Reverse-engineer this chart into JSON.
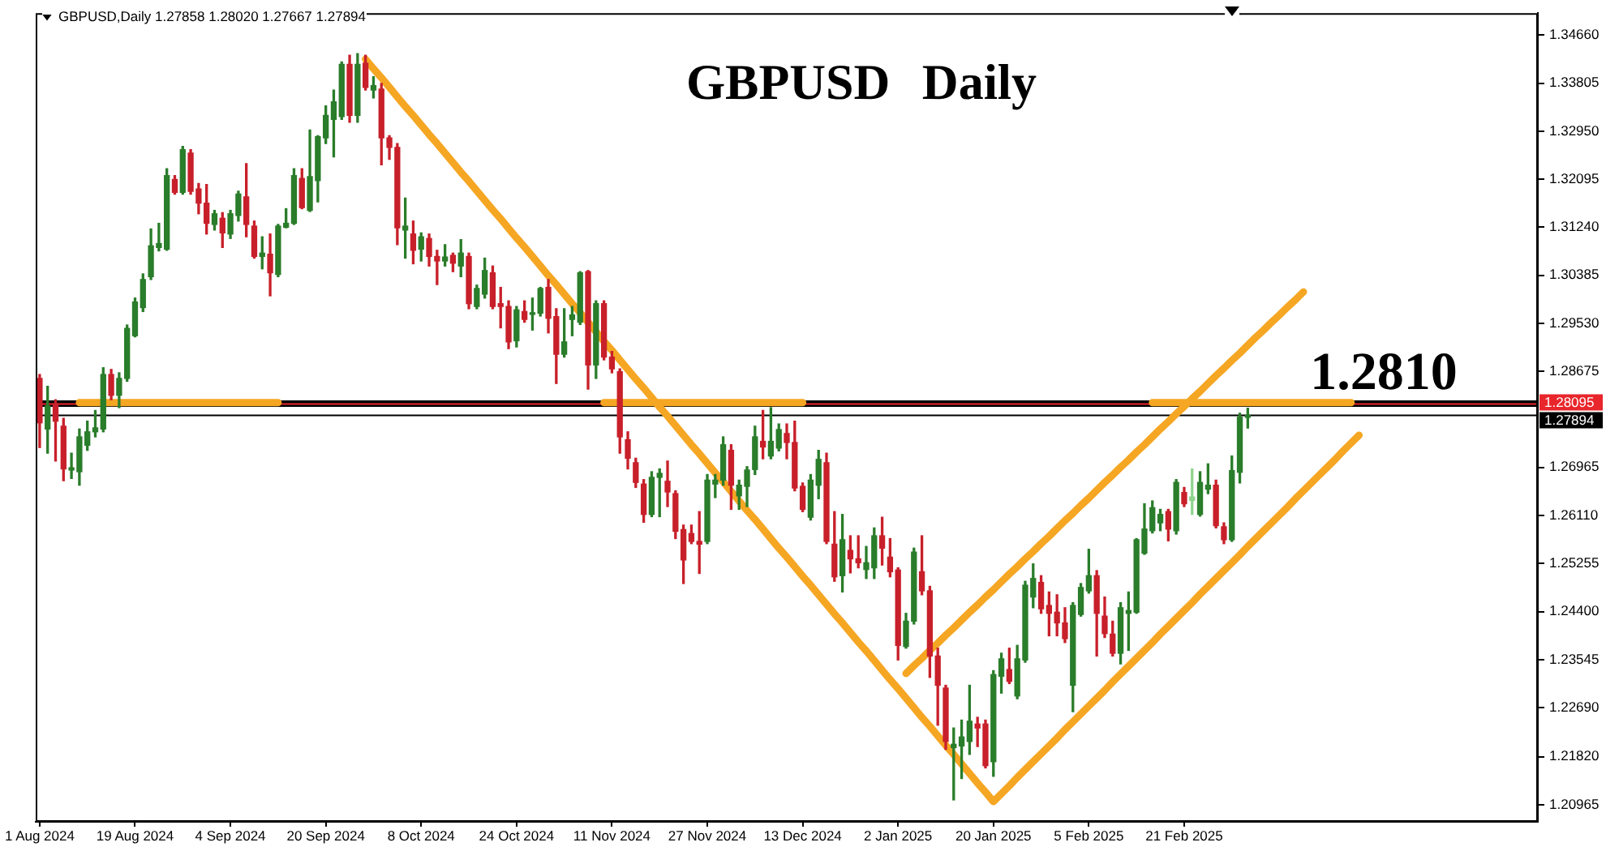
{
  "chart_data": {
    "type": "candlestick",
    "title": "GBPUSD Daily",
    "subtitle": "GBPUSD,Daily 1.27858 1.28020 1.27667 1.27894",
    "categories": [
      "1 Aug 2024",
      null,
      null,
      null,
      null,
      null,
      null,
      null,
      null,
      null,
      null,
      null,
      "19 Aug 2024",
      null,
      null,
      null,
      null,
      null,
      null,
      null,
      null,
      null,
      null,
      null,
      "4 Sep 2024",
      null,
      null,
      null,
      null,
      null,
      null,
      null,
      null,
      null,
      null,
      null,
      "20 Sep 2024",
      null,
      null,
      null,
      null,
      null,
      null,
      null,
      null,
      null,
      null,
      null,
      "8 Oct 2024",
      null,
      null,
      null,
      null,
      null,
      null,
      null,
      null,
      null,
      null,
      null,
      "24 Oct 2024",
      null,
      null,
      null,
      null,
      null,
      null,
      null,
      null,
      null,
      null,
      null,
      "11 Nov 2024",
      null,
      null,
      null,
      null,
      null,
      null,
      null,
      null,
      null,
      null,
      null,
      "27 Nov 2024",
      null,
      null,
      null,
      null,
      null,
      null,
      null,
      null,
      null,
      null,
      null,
      "13 Dec 2024",
      null,
      null,
      null,
      null,
      null,
      null,
      null,
      null,
      null,
      null,
      null,
      "2 Jan 2025",
      null,
      null,
      null,
      null,
      null,
      null,
      null,
      null,
      null,
      null,
      null,
      "20 Jan 2025",
      null,
      null,
      null,
      null,
      null,
      null,
      null,
      null,
      null,
      null,
      null,
      "5 Feb 2025",
      null,
      null,
      null,
      null,
      null,
      null,
      null,
      null,
      null,
      null,
      null,
      "21 Feb 2025",
      null,
      null,
      null,
      null,
      null,
      null,
      null,
      null,
      null,
      null,
      null,
      null,
      null,
      null,
      null,
      null,
      null,
      null,
      null,
      null,
      null,
      null,
      null,
      null,
      null,
      null,
      null,
      null,
      null,
      null,
      null,
      null,
      null,
      null,
      null,
      null,
      null,
      null,
      null,
      null,
      null,
      null,
      null,
      null
    ],
    "ohlc": [
      [
        1.2855,
        1.2862,
        1.2732,
        1.2776
      ],
      [
        1.2765,
        1.2841,
        1.2722,
        1.2806
      ],
      [
        1.281,
        1.2817,
        1.2708,
        1.2779
      ],
      [
        1.277,
        1.2784,
        1.2673,
        1.2694
      ],
      [
        1.2692,
        1.2722,
        1.2677,
        1.2696
      ],
      [
        1.2689,
        1.2765,
        1.2665,
        1.2751
      ],
      [
        1.2736,
        1.2779,
        1.2727,
        1.276
      ],
      [
        1.276,
        1.2798,
        1.2751,
        1.2767
      ],
      [
        1.2765,
        1.2874,
        1.276,
        1.2862
      ],
      [
        1.2862,
        1.2871,
        1.2817,
        1.2825
      ],
      [
        1.2825,
        1.2865,
        1.2803,
        1.2855
      ],
      [
        1.2855,
        1.295,
        1.285,
        1.2944
      ],
      [
        1.2931,
        1.2998,
        1.2929,
        1.2991
      ],
      [
        1.2981,
        1.3041,
        1.2974,
        1.3031
      ],
      [
        1.3036,
        1.3121,
        1.3031,
        1.3091
      ],
      [
        1.3088,
        1.3131,
        1.3082,
        1.3095
      ],
      [
        1.3085,
        1.3228,
        1.3083,
        1.3216
      ],
      [
        1.3209,
        1.3216,
        1.3183,
        1.3186
      ],
      [
        1.3186,
        1.3268,
        1.3183,
        1.3262
      ],
      [
        1.3256,
        1.3262,
        1.3183,
        1.3188
      ],
      [
        1.3192,
        1.3202,
        1.3148,
        1.3167
      ],
      [
        1.3167,
        1.32,
        1.3112,
        1.3131
      ],
      [
        1.3129,
        1.3154,
        1.3119,
        1.3148
      ],
      [
        1.314,
        1.315,
        1.3088,
        1.3114
      ],
      [
        1.3112,
        1.3154,
        1.3104,
        1.3148
      ],
      [
        1.3145,
        1.3188,
        1.3135,
        1.3183
      ],
      [
        1.3178,
        1.3237,
        1.3107,
        1.3129
      ],
      [
        1.3126,
        1.3135,
        1.3069,
        1.3072
      ],
      [
        1.3072,
        1.3107,
        1.305,
        1.3078
      ],
      [
        1.3076,
        1.3112,
        1.3002,
        1.3043
      ],
      [
        1.304,
        1.3129,
        1.3036,
        1.3126
      ],
      [
        1.3124,
        1.3157,
        1.3123,
        1.3131
      ],
      [
        1.3131,
        1.3228,
        1.3129,
        1.3216
      ],
      [
        1.3211,
        1.3228,
        1.3157,
        1.3159
      ],
      [
        1.3154,
        1.3297,
        1.3152,
        1.3214
      ],
      [
        1.3207,
        1.3287,
        1.3169,
        1.3285
      ],
      [
        1.3283,
        1.334,
        1.3273,
        1.3323
      ],
      [
        1.3316,
        1.3368,
        1.3249,
        1.3347
      ],
      [
        1.3321,
        1.3418,
        1.3316,
        1.3414
      ],
      [
        1.3414,
        1.343,
        1.3311,
        1.3323
      ],
      [
        1.3323,
        1.3433,
        1.3311,
        1.3414
      ],
      [
        1.3416,
        1.343,
        1.3368,
        1.3373
      ],
      [
        1.3368,
        1.3392,
        1.3354,
        1.3376
      ],
      [
        1.337,
        1.338,
        1.3235,
        1.3283
      ],
      [
        1.3283,
        1.3287,
        1.3245,
        1.3266
      ],
      [
        1.3266,
        1.3273,
        1.3093,
        1.3123
      ],
      [
        1.3119,
        1.3176,
        1.3069,
        1.3126
      ],
      [
        1.3112,
        1.3135,
        1.3059,
        1.3083
      ],
      [
        1.3085,
        1.3114,
        1.3064,
        1.3107
      ],
      [
        1.3104,
        1.3112,
        1.3055,
        1.3072
      ],
      [
        1.3072,
        1.3083,
        1.3022,
        1.3064
      ],
      [
        1.3064,
        1.3093,
        1.3055,
        1.3071
      ],
      [
        1.3074,
        1.3078,
        1.3045,
        1.306
      ],
      [
        1.3055,
        1.3102,
        1.3036,
        1.3078
      ],
      [
        1.3072,
        1.3078,
        1.2979,
        1.2988
      ],
      [
        1.2983,
        1.3021,
        1.2979,
        1.3015
      ],
      [
        1.3005,
        1.3069,
        1.2998,
        1.3047
      ],
      [
        1.3043,
        1.3055,
        1.2979,
        1.2983
      ],
      [
        1.2988,
        1.3017,
        1.2945,
        1.2983
      ],
      [
        1.2983,
        1.2993,
        1.2908,
        1.292
      ],
      [
        1.2922,
        1.2983,
        1.2911,
        1.2977
      ],
      [
        1.2974,
        1.2993,
        1.2955,
        1.296
      ],
      [
        1.2969,
        1.2998,
        1.2941,
        1.2971
      ],
      [
        1.2971,
        1.3017,
        1.2966,
        1.3015
      ],
      [
        1.3017,
        1.3031,
        1.2936,
        1.2962
      ],
      [
        1.2965,
        1.2979,
        1.2846,
        1.2898
      ],
      [
        1.2898,
        1.2979,
        1.2893,
        1.292
      ],
      [
        1.296,
        1.2983,
        1.2931,
        1.2968
      ],
      [
        1.2955,
        1.3045,
        1.2951,
        1.3043
      ],
      [
        1.3045,
        1.3047,
        1.2836,
        1.2879
      ],
      [
        1.2879,
        1.2993,
        1.2855,
        1.2988
      ],
      [
        1.2988,
        1.2993,
        1.2888,
        1.2893
      ],
      [
        1.2893,
        1.2903,
        1.2865,
        1.2872
      ],
      [
        1.2867,
        1.2872,
        1.2722,
        1.2751
      ],
      [
        1.2746,
        1.276,
        1.2694,
        1.2713
      ],
      [
        1.2705,
        1.2713,
        1.2661,
        1.267
      ],
      [
        1.2667,
        1.2675,
        1.2599,
        1.2613
      ],
      [
        1.2613,
        1.2689,
        1.2609,
        1.2679
      ],
      [
        1.2679,
        1.2694,
        1.2609,
        1.2686
      ],
      [
        1.2672,
        1.2708,
        1.2627,
        1.2653
      ],
      [
        1.265,
        1.2655,
        1.257,
        1.2583
      ],
      [
        1.2586,
        1.2594,
        1.249,
        1.2532
      ],
      [
        1.2579,
        1.2594,
        1.2561,
        1.2565
      ],
      [
        1.2565,
        1.2618,
        1.2508,
        1.256
      ],
      [
        1.2565,
        1.2684,
        1.2561,
        1.2674
      ],
      [
        1.2667,
        1.2684,
        1.2643,
        1.2674
      ],
      [
        1.2674,
        1.2751,
        1.2665,
        1.2737
      ],
      [
        1.2727,
        1.2737,
        1.2622,
        1.2665
      ],
      [
        1.2646,
        1.2674,
        1.2622,
        1.2665
      ],
      [
        1.2663,
        1.2698,
        1.2627,
        1.2692
      ],
      [
        1.2693,
        1.277,
        1.2684,
        1.2751
      ],
      [
        1.2743,
        1.2798,
        1.2712,
        1.2733
      ],
      [
        1.2717,
        1.2803,
        1.2712,
        1.2743
      ],
      [
        1.2731,
        1.2774,
        1.2726,
        1.2764
      ],
      [
        1.2757,
        1.2774,
        1.2712,
        1.2741
      ],
      [
        1.2741,
        1.2779,
        1.2655,
        1.266
      ],
      [
        1.2663,
        1.2669,
        1.2618,
        1.2622
      ],
      [
        1.2608,
        1.2684,
        1.2603,
        1.2674
      ],
      [
        1.2665,
        1.2727,
        1.2641,
        1.2711
      ],
      [
        1.2705,
        1.2722,
        1.2561,
        1.2565
      ],
      [
        1.256,
        1.2618,
        1.2494,
        1.2502
      ],
      [
        1.2504,
        1.2613,
        1.2475,
        1.2568
      ],
      [
        1.2549,
        1.2575,
        1.2509,
        1.2534
      ],
      [
        1.2534,
        1.2575,
        1.2518,
        1.2527
      ],
      [
        1.2515,
        1.2556,
        1.2499,
        1.2527
      ],
      [
        1.2518,
        1.2589,
        1.2499,
        1.2575
      ],
      [
        1.2575,
        1.2608,
        1.2523,
        1.2553
      ],
      [
        1.2537,
        1.257,
        1.2502,
        1.2511
      ],
      [
        1.2514,
        1.2518,
        1.2354,
        1.238
      ],
      [
        1.2378,
        1.2437,
        1.2375,
        1.2423
      ],
      [
        1.2423,
        1.2553,
        1.2418,
        1.2546
      ],
      [
        1.2511,
        1.2575,
        1.247,
        1.2477
      ],
      [
        1.2477,
        1.2485,
        1.2323,
        1.2361
      ],
      [
        1.2361,
        1.2375,
        1.2238,
        1.2309
      ],
      [
        1.2304,
        1.2309,
        1.2195,
        1.2209
      ],
      [
        1.2198,
        1.2233,
        1.2105,
        1.2204
      ],
      [
        1.2201,
        1.2247,
        1.2143,
        1.2217
      ],
      [
        1.2209,
        1.2309,
        1.2186,
        1.2245
      ],
      [
        1.224,
        1.2252,
        1.22,
        1.2233
      ],
      [
        1.224,
        1.2247,
        1.2162,
        1.2166
      ],
      [
        1.2173,
        1.2335,
        1.2147,
        1.2328
      ],
      [
        1.2325,
        1.2366,
        1.2295,
        1.2356
      ],
      [
        1.2337,
        1.2375,
        1.2312,
        1.2316
      ],
      [
        1.229,
        1.238,
        1.2285,
        1.2356
      ],
      [
        1.2354,
        1.2494,
        1.235,
        1.2487
      ],
      [
        1.2466,
        1.2525,
        1.2447,
        1.2499
      ],
      [
        1.2492,
        1.2504,
        1.2437,
        1.2445
      ],
      [
        1.2451,
        1.2475,
        1.2397,
        1.2437
      ],
      [
        1.2439,
        1.247,
        1.2397,
        1.242
      ],
      [
        1.242,
        1.2447,
        1.2385,
        1.2392
      ],
      [
        1.2309,
        1.2456,
        1.2262,
        1.2451
      ],
      [
        1.2435,
        1.249,
        1.2432,
        1.2483
      ],
      [
        1.2477,
        1.2551,
        1.2473,
        1.2504
      ],
      [
        1.2504,
        1.2513,
        1.2361,
        1.2437
      ],
      [
        1.2432,
        1.2466,
        1.2394,
        1.2401
      ],
      [
        1.24,
        1.2423,
        1.2361,
        1.2366
      ],
      [
        1.2366,
        1.2456,
        1.2347,
        1.2447
      ],
      [
        1.2437,
        1.2475,
        1.2371,
        1.2442
      ],
      [
        1.2439,
        1.257,
        1.2437,
        1.2568
      ],
      [
        1.2544,
        1.2632,
        1.2542,
        1.2587
      ],
      [
        1.2584,
        1.2637,
        1.258,
        1.2625
      ],
      [
        1.2598,
        1.2622,
        1.2584,
        1.2613
      ],
      [
        1.2618,
        1.2622,
        1.2566,
        1.2587
      ],
      [
        1.2584,
        1.2675,
        1.2578,
        1.267
      ],
      [
        1.2652,
        1.2661,
        1.2627,
        1.2632
      ],
      [
        1.2638,
        1.2694,
        1.2613,
        1.2644
      ],
      [
        1.2613,
        1.2689,
        1.261,
        1.267
      ],
      [
        1.2658,
        1.2703,
        1.265,
        1.2665
      ],
      [
        1.2665,
        1.2674,
        1.2589,
        1.2593
      ],
      [
        1.2591,
        1.2598,
        1.2561,
        1.2568
      ],
      [
        1.2568,
        1.2717,
        1.2565,
        1.2691
      ],
      [
        1.2688,
        1.2793,
        1.2669,
        1.2786
      ],
      [
        1.27858,
        1.2802,
        1.27667,
        1.27894
      ],
      null,
      null,
      null,
      null,
      null,
      null,
      null,
      null,
      null,
      null,
      null,
      null,
      null,
      null,
      null,
      null,
      null,
      null,
      null,
      null,
      null,
      null,
      null,
      null,
      null,
      null,
      null,
      null,
      null,
      null,
      null,
      null,
      null,
      null,
      null,
      null
    ],
    "colors": [
      "#c8202a",
      "#2a7d2a",
      "#c8202a",
      "#c8202a",
      "#2a7d2a",
      "#2a7d2a",
      "#2a7d2a",
      "#2a7d2a",
      "#2a7d2a",
      "#c8202a",
      "#2a7d2a",
      "#2a7d2a",
      "#2a7d2a",
      "#2a7d2a",
      "#2a7d2a",
      "#2a7d2a",
      "#2a7d2a",
      "#c8202a",
      "#2a7d2a",
      "#c8202a",
      "#c8202a",
      "#c8202a",
      "#2a7d2a",
      "#c8202a",
      "#2a7d2a",
      "#2a7d2a",
      "#c8202a",
      "#c8202a",
      "#2a7d2a",
      "#c8202a",
      "#2a7d2a",
      "#2a7d2a",
      "#2a7d2a",
      "#c8202a",
      "#2a7d2a",
      "#2a7d2a",
      "#2a7d2a",
      "#2a7d2a",
      "#2a7d2a",
      "#c8202a",
      "#2a7d2a",
      "#c8202a",
      "#2a7d2a",
      "#c8202a",
      "#c8202a",
      "#c8202a",
      "#2a7d2a",
      "#c8202a",
      "#2a7d2a",
      "#c8202a",
      "#c8202a",
      "#2a7d2a",
      "#c8202a",
      "#2a7d2a",
      "#c8202a",
      "#2a7d2a",
      "#2a7d2a",
      "#c8202a",
      "#c8202a",
      "#c8202a",
      "#2a7d2a",
      "#c8202a",
      "#2a7d2a",
      "#2a7d2a",
      "#c8202a",
      "#c8202a",
      "#2a7d2a",
      "#2a7d2a",
      "#2a7d2a",
      "#c8202a",
      "#2a7d2a",
      "#c8202a",
      "#c8202a",
      "#c8202a",
      "#c8202a",
      "#c8202a",
      "#c8202a",
      "#2a7d2a",
      "#2a7d2a",
      "#c8202a",
      "#c8202a",
      "#c8202a",
      "#c8202a",
      "#c8202a",
      "#2a7d2a",
      "#2a7d2a",
      "#2a7d2a",
      "#c8202a",
      "#2a7d2a",
      "#2a7d2a",
      "#2a7d2a",
      "#c8202a",
      "#2a7d2a",
      "#2a7d2a",
      "#c8202a",
      "#c8202a",
      "#c8202a",
      "#2a7d2a",
      "#2a7d2a",
      "#c8202a",
      "#c8202a",
      "#2a7d2a",
      "#c8202a",
      "#c8202a",
      "#2a7d2a",
      "#2a7d2a",
      "#c8202a",
      "#c8202a",
      "#c8202a",
      "#2a7d2a",
      "#2a7d2a",
      "#c8202a",
      "#c8202a",
      "#c8202a",
      "#c8202a",
      "#2a7d2a",
      "#2a7d2a",
      "#2a7d2a",
      "#c8202a",
      "#c8202a",
      "#2a7d2a",
      "#2a7d2a",
      "#c8202a",
      "#2a7d2a",
      "#2a7d2a",
      "#2a7d2a",
      "#c8202a",
      "#c8202a",
      "#c8202a",
      "#c8202a",
      "#2a7d2a",
      "#2a7d2a",
      "#2a7d2a",
      "#c8202a",
      "#c8202a",
      "#c8202a",
      "#2a7d2a",
      "#2a7d2a",
      "#2a7d2a",
      "#2a7d2a",
      "#2a7d2a",
      "#2a7d2a",
      "#c8202a",
      "#2a7d2a",
      "#c8202a",
      "#8fd48f",
      "#2a7d2a",
      "#2a7d2a",
      "#c8202a",
      "#c8202a",
      "#2a7d2a",
      "#2a7d2a",
      "#2a7d2a",
      null,
      null,
      null,
      null,
      null,
      null,
      null,
      null,
      null,
      null,
      null,
      null,
      null,
      null,
      null,
      null,
      null,
      null,
      null,
      null,
      null,
      null,
      null,
      null,
      null,
      null,
      null,
      null,
      null,
      null,
      null,
      null,
      null,
      null,
      null,
      null
    ],
    "series": [
      {
        "type": "line",
        "color": "#f5a623",
        "values": [
          null,
          null,
          null,
          null,
          null,
          null,
          null,
          null,
          null,
          null,
          null,
          null,
          null,
          null,
          null,
          null,
          null,
          null,
          null,
          null,
          null,
          null,
          null,
          null,
          null,
          null,
          null,
          null,
          null,
          null,
          null,
          null,
          null,
          null,
          null,
          null,
          null,
          null,
          null,
          null,
          null,
          1.3423,
          1.3406,
          1.339,
          1.3373,
          1.3356,
          1.3339,
          1.3323,
          1.3306,
          1.3289,
          1.3273,
          1.3256,
          1.3239,
          1.3222,
          1.3206,
          1.3189,
          1.3172,
          1.3155,
          1.3139,
          1.3122,
          1.3105,
          1.3089,
          1.3072,
          1.3055,
          1.3038,
          1.3022,
          1.3005,
          1.2988,
          1.2972,
          1.2955,
          1.2938,
          1.2921,
          1.2905,
          1.2888,
          1.2871,
          1.2854,
          1.2838,
          1.2821,
          1.2804,
          1.2788,
          1.2771,
          1.2754,
          1.2737,
          1.2721,
          1.2704,
          1.2687,
          1.2671,
          1.2654,
          1.2637,
          1.262,
          1.2604,
          1.2587,
          1.257,
          1.2553,
          1.2537,
          1.252,
          1.2503,
          1.2487,
          1.247,
          1.2453,
          1.2436,
          1.242,
          1.2403,
          1.2386,
          1.237,
          1.2353,
          1.2336,
          1.2319,
          1.2303,
          1.2286,
          1.2269,
          1.2252,
          1.2236,
          1.2219,
          1.2202,
          1.2186,
          1.2169,
          1.2152,
          1.2135,
          1.2119,
          1.2102,
          1.2116,
          1.213,
          1.2145,
          1.2159,
          1.2173,
          1.2187,
          1.2201,
          1.2215,
          1.223,
          1.2244,
          1.2258,
          1.2272,
          1.2286,
          1.23,
          1.2315,
          1.2329,
          1.2343,
          1.2357,
          1.2371,
          1.2385,
          1.24,
          1.2414,
          1.2428,
          1.2442,
          1.2456,
          1.2471,
          1.2485,
          1.2499,
          1.2513,
          1.2527,
          1.2541,
          1.2556,
          1.257,
          1.2584,
          1.2598,
          1.2612,
          1.2626,
          1.2641,
          1.2655,
          1.2669,
          1.2683,
          1.2697,
          1.2711,
          1.2726,
          1.274,
          1.2754,
          null,
          null,
          null,
          null,
          null,
          null,
          null,
          null,
          null,
          null,
          null,
          null,
          null,
          null,
          null,
          null,
          null,
          null,
          null,
          null,
          null,
          null
        ]
      },
      {
        "type": "line",
        "color": "#f5a623",
        "values": [
          null,
          null,
          null,
          null,
          null,
          null,
          null,
          null,
          null,
          null,
          null,
          null,
          null,
          null,
          null,
          null,
          null,
          null,
          null,
          null,
          null,
          null,
          null,
          null,
          null,
          null,
          null,
          null,
          null,
          null,
          null,
          null,
          null,
          null,
          null,
          null,
          null,
          null,
          null,
          null,
          null,
          null,
          null,
          null,
          null,
          null,
          null,
          null,
          null,
          null,
          null,
          null,
          null,
          null,
          null,
          null,
          null,
          null,
          null,
          null,
          null,
          null,
          null,
          null,
          null,
          null,
          null,
          null,
          null,
          null,
          null,
          null,
          null,
          null,
          null,
          null,
          null,
          null,
          null,
          null,
          null,
          null,
          null,
          null,
          null,
          null,
          null,
          null,
          null,
          null,
          null,
          null,
          null,
          null,
          null,
          null,
          null,
          null,
          null,
          null,
          null,
          null,
          null,
          null,
          null,
          null,
          null,
          null,
          null,
          1.233,
          1.2344,
          1.2357,
          1.2371,
          1.2384,
          1.2398,
          1.2411,
          1.2425,
          1.2439,
          1.2452,
          1.2466,
          1.2479,
          1.2493,
          1.2507,
          1.252,
          1.2534,
          1.2547,
          1.2561,
          1.2574,
          1.2588,
          1.2602,
          1.2615,
          1.2629,
          1.2642,
          1.2656,
          1.267,
          1.2683,
          1.2697,
          1.271,
          1.2724,
          1.2737,
          1.2751,
          1.2765,
          1.2778,
          1.2792,
          1.2805,
          1.2819,
          1.2832,
          1.2846,
          1.286,
          1.2873,
          1.2887,
          1.29,
          1.2914,
          1.2928,
          1.2941,
          1.2955,
          1.2968,
          1.2982,
          1.2995,
          1.3009,
          null,
          null,
          null,
          null,
          null,
          null,
          null,
          null,
          null,
          null,
          null,
          null,
          null,
          null,
          null,
          null,
          null,
          null,
          null,
          null,
          null,
          null,
          null,
          null,
          null,
          null,
          null,
          null,
          null
        ]
      },
      {
        "type": "line",
        "color": "#f5a623",
        "values": [
          null,
          null,
          null,
          null,
          null,
          1.2812,
          1.2812,
          1.2812,
          1.2812,
          1.2812,
          1.2812,
          1.2812,
          1.2812,
          1.2812,
          1.2812,
          1.2812,
          1.2812,
          1.2812,
          1.2812,
          1.2812,
          1.2812,
          1.2812,
          1.2812,
          1.2812,
          1.2812,
          1.2812,
          1.2812,
          1.2812,
          1.2812,
          1.2812,
          1.2812,
          null,
          null,
          null,
          null,
          null,
          null,
          null,
          null,
          null,
          null,
          null,
          null,
          null,
          null,
          null,
          null,
          null,
          null,
          null,
          null,
          null,
          null,
          null,
          null,
          null,
          null,
          null,
          null,
          null,
          null,
          null,
          null,
          null,
          null,
          null,
          null,
          null,
          null,
          null,
          null,
          1.2812,
          1.2812,
          1.2812,
          1.2812,
          1.2812,
          1.2812,
          1.2812,
          1.2812,
          1.2812,
          1.2812,
          1.2812,
          1.2812,
          1.2812,
          1.2812,
          1.2812,
          1.2812,
          1.2812,
          1.2812,
          1.2812,
          1.2812,
          1.2812,
          1.2812,
          1.2812,
          1.2812,
          1.2812,
          1.2812,
          null,
          null,
          null,
          null,
          null,
          null,
          null,
          null,
          null,
          null,
          null,
          null,
          null,
          null,
          null,
          null,
          null,
          null,
          null,
          null,
          null,
          null,
          null,
          null,
          null,
          null,
          null,
          null,
          null,
          null,
          null,
          null,
          null,
          null,
          null,
          null,
          null,
          null,
          null,
          null,
          null,
          null,
          null,
          1.2812,
          1.2812,
          1.2812,
          1.2812,
          1.2812,
          1.2812,
          1.2812,
          1.2812,
          1.2812,
          1.2812,
          1.2812,
          1.2812,
          1.2812,
          1.2812,
          1.2812,
          1.2812,
          1.2812,
          1.2812,
          1.2812,
          1.2812,
          1.2812,
          1.2812,
          1.2812,
          1.2812,
          1.2812,
          1.2812,
          null,
          null,
          null,
          null,
          null,
          null,
          null,
          null,
          null,
          null,
          null,
          null,
          null,
          null,
          null,
          null,
          null,
          null,
          null,
          null,
          null,
          null,
          null
        ]
      }
    ],
    "ylim": [
      1.2066,
      1.3505
    ],
    "yticks": [
      {
        "value": 1.3466,
        "label": "1.34660"
      },
      1.33805,
      {
        "value": 1.3295,
        "label": "1.32950"
      },
      1.32095,
      {
        "value": 1.3124,
        "label": "1.31240"
      },
      1.30385,
      {
        "value": 1.2953,
        "label": "1.29530"
      },
      1.28675,
      1.26965,
      {
        "value": 1.2611,
        "label": "1.26110"
      },
      1.25255,
      {
        "value": 1.244,
        "label": "1.24400"
      },
      1.23545,
      {
        "value": 1.2269,
        "label": "1.22690"
      },
      {
        "value": 1.2182,
        "label": "1.21820"
      },
      1.20965
    ],
    "ref_lines": [
      {
        "axis": "y",
        "value": 1.281,
        "label": "1.2810",
        "color": "#000000"
      },
      {
        "axis": "y",
        "value": 1.28095,
        "label": "1.28095",
        "color": "#e8262b"
      },
      {
        "axis": "y",
        "value": 1.27894,
        "label": "1.27894",
        "color": "#000000"
      }
    ]
  }
}
